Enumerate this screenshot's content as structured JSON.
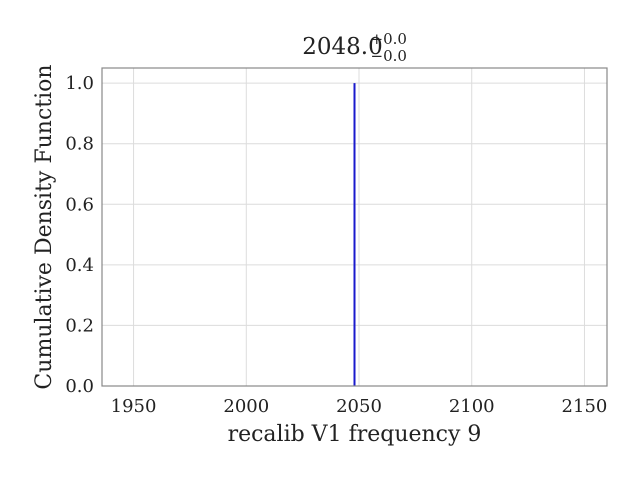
{
  "chart_data": {
    "type": "line",
    "title": {
      "value": "2048.0",
      "upper": "+0.0",
      "lower": "−0.0"
    },
    "xlabel": "recalib V1 frequency 9",
    "ylabel": "Cumulative Density Function",
    "xlim": [
      1936,
      2160
    ],
    "ylim": [
      0,
      1.05
    ],
    "xticks": [
      1950,
      2000,
      2050,
      2100,
      2150
    ],
    "xtick_labels": [
      "1950",
      "2000",
      "2050",
      "2100",
      "2150"
    ],
    "yticks": [
      0.0,
      0.2,
      0.4,
      0.6,
      0.8,
      1.0
    ],
    "ytick_labels": [
      "0.0",
      "0.2",
      "0.4",
      "0.6",
      "0.8",
      "1.0"
    ],
    "grid": true,
    "series": [
      {
        "color": "#1a1acc",
        "x": [
          2048.0,
          2048.0
        ],
        "y": [
          0.0,
          1.0
        ]
      }
    ]
  }
}
